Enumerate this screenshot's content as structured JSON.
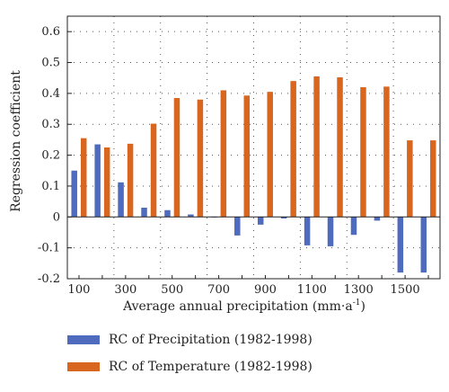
{
  "chart_data": {
    "type": "bar",
    "categories": [
      "100",
      "200",
      "300",
      "400",
      "500",
      "600",
      "700",
      "800",
      "900",
      "1000",
      "1100",
      "1200",
      "1300",
      "1400",
      "1500",
      "1600"
    ],
    "x_tick_labels": [
      "100",
      "300",
      "500",
      "700",
      "900",
      "1100",
      "1300",
      "1500"
    ],
    "y_ticks": [
      -0.2,
      -0.1,
      0,
      0.1,
      0.2,
      0.3,
      0.4,
      0.5,
      0.6
    ],
    "y_tick_labels": [
      "-0.2",
      "-0.1",
      "0",
      "0.1",
      "0.2",
      "0.3",
      "0.4",
      "0.5",
      "0.6"
    ],
    "ylim": [
      -0.2,
      0.65
    ],
    "xlabel": "Average annual precipitation (mm·a",
    "xlabel_sup": "-1",
    "xlabel_end": ")",
    "ylabel": "Regression coefficient",
    "grid": true,
    "series": [
      {
        "name": "RC of Precipitation (1982-1998)",
        "color": "#4f6bbd",
        "values": [
          0.15,
          0.235,
          0.112,
          0.03,
          0.022,
          0.008,
          0.0,
          -0.06,
          -0.025,
          -0.005,
          -0.092,
          -0.095,
          -0.058,
          -0.012,
          -0.18,
          -0.18
        ]
      },
      {
        "name": "RC of Temperature (1982-1998)",
        "color": "#d9661f",
        "values": [
          0.255,
          0.225,
          0.237,
          0.302,
          0.385,
          0.38,
          0.41,
          0.393,
          0.405,
          0.44,
          0.455,
          0.452,
          0.42,
          0.422,
          0.248,
          0.248
        ]
      }
    ]
  }
}
